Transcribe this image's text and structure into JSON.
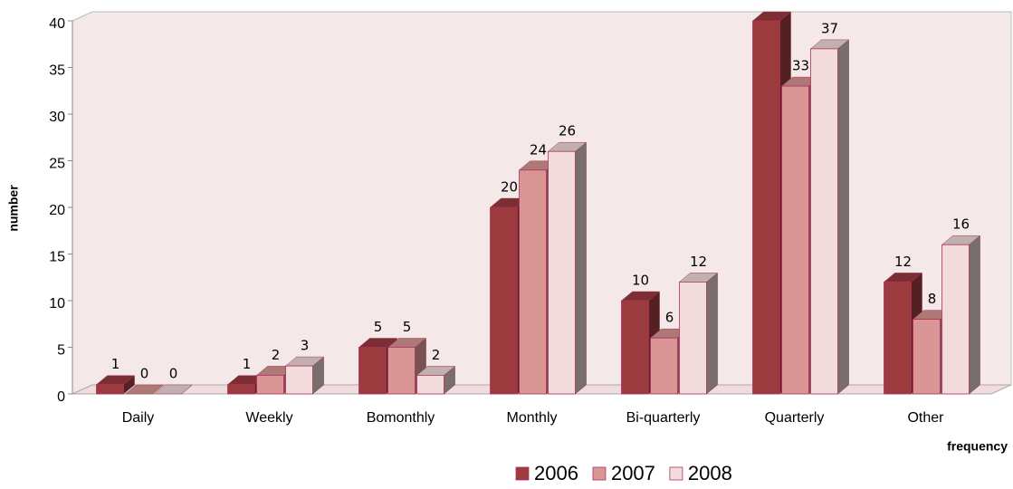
{
  "chart_data": {
    "type": "bar3d",
    "categories": [
      "Daily",
      "Weekly",
      "Bomonthly",
      "Monthly",
      "Bi-quarterly",
      "Quarterly",
      "Other"
    ],
    "series": [
      {
        "name": "2006",
        "color": "#9b3b3e",
        "values": [
          1,
          1,
          5,
          20,
          10,
          40,
          12
        ],
        "value_labels": [
          "1",
          "1",
          "5",
          "20",
          "10",
          null,
          "12"
        ]
      },
      {
        "name": "2007",
        "color": "#d99694",
        "values": [
          0,
          2,
          5,
          24,
          6,
          33,
          8
        ]
      },
      {
        "name": "2008",
        "color": "#f2dcdb",
        "values": [
          0,
          3,
          2,
          26,
          12,
          37,
          16
        ]
      }
    ],
    "ylim": [
      0,
      40
    ],
    "yticks": [
      0,
      5,
      10,
      15,
      20,
      25,
      30,
      35,
      40
    ],
    "y_label": "number",
    "x_label": "frequency",
    "grid": false,
    "legend": "bottom"
  }
}
